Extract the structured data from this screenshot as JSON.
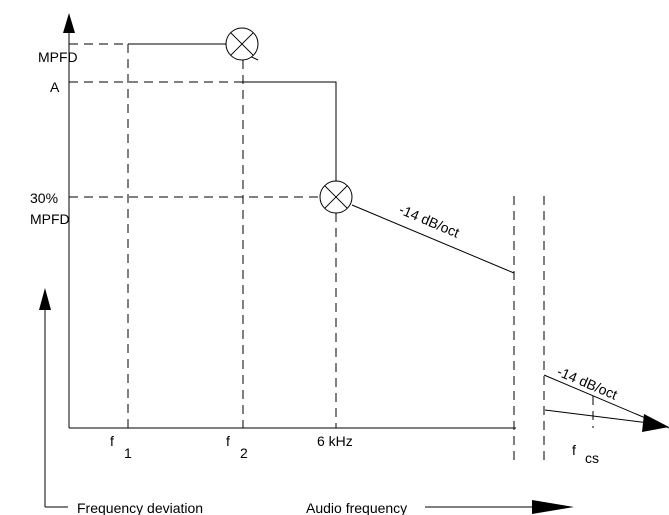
{
  "diagram": {
    "y_labels": {
      "mpfd": "MPFD",
      "a": "A",
      "pct30_line1": "30%",
      "pct30_line2": "MPFD"
    },
    "x_labels": {
      "f1": "f",
      "f1_sub": "1",
      "f2": "f",
      "f2_sub": "2",
      "six_khz": "6 kHz",
      "fcs": "f",
      "fcs_sub": "cs"
    },
    "slope_labels": {
      "upper": "-14 dB/oct",
      "lower": "-14 dB/oct"
    },
    "axis_captions": {
      "vertical": "Frequency deviation",
      "horizontal": "Audio frequency"
    },
    "colors": {
      "ink": "#000000",
      "background": "#ffffff"
    }
  }
}
